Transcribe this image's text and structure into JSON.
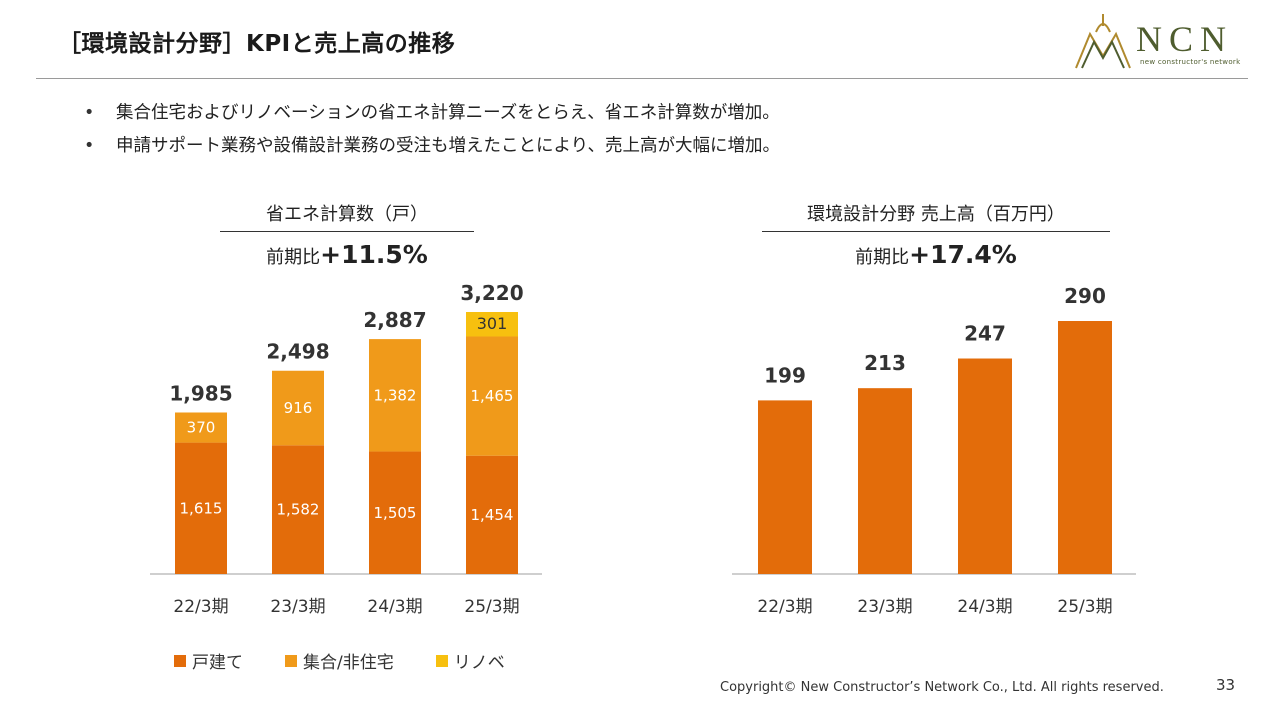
{
  "header": {
    "title": "［環境設計分野］KPIと売上高の推移",
    "logo_text": "NCN",
    "logo_tagline": "new constructor's network"
  },
  "bullets": [
    "集合住宅およびリノベーションの省エネ計算ニーズをとらえ、省エネ計算数が増加。",
    "申請サポート業務や設備設計業務の受注も増えたことにより、売上高が大幅に増加。"
  ],
  "colors": {
    "detached": "#e36c0a",
    "multifamily": "#f09a1a",
    "renovation": "#f7c00f",
    "accent_logo": "#4f5d2f"
  },
  "left_chart": {
    "title": "省エネ計算数（戸）",
    "growth_label": "前期比",
    "growth_value": "+11.5%"
  },
  "right_chart": {
    "title": "環境設計分野 売上高（百万円）",
    "growth_label": "前期比",
    "growth_value": "+17.4%"
  },
  "legend": [
    "戸建て",
    "集合/非住宅",
    "リノベ"
  ],
  "footer": {
    "copyright": "Copyright© New Constructor’s Network Co., Ltd. All rights reserved.",
    "page_number": "33"
  },
  "chart_data": [
    {
      "type": "bar",
      "stacked": true,
      "title": "省エネ計算数（戸）",
      "categories": [
        "22/3期",
        "23/3期",
        "24/3期",
        "25/3期"
      ],
      "series": [
        {
          "name": "戸建て",
          "values": [
            1615,
            1582,
            1505,
            1454
          ],
          "color": "#e36c0a"
        },
        {
          "name": "集合/非住宅",
          "values": [
            370,
            916,
            1382,
            1465
          ],
          "color": "#f09a1a"
        },
        {
          "name": "リノベ",
          "values": [
            0,
            0,
            0,
            301
          ],
          "color": "#f7c00f"
        }
      ],
      "totals": [
        "1,985",
        "2,498",
        "2,887",
        "3,220"
      ],
      "value_labels": [
        [
          "1,615",
          "1,582",
          "1,505",
          "1,454"
        ],
        [
          "370",
          "916",
          "1,382",
          "1,465"
        ],
        [
          "",
          "",
          "",
          "301"
        ]
      ],
      "ylim": [
        0,
        3500
      ],
      "grid": false,
      "legend_position": "bottom-left"
    },
    {
      "type": "bar",
      "title": "環境設計分野 売上高（百万円）",
      "categories": [
        "22/3期",
        "23/3期",
        "24/3期",
        "25/3期"
      ],
      "values": [
        199,
        213,
        247,
        290
      ],
      "value_labels": [
        "199",
        "213",
        "247",
        "290"
      ],
      "color": "#e36c0a",
      "ylim": [
        0,
        300
      ],
      "grid": false
    }
  ]
}
